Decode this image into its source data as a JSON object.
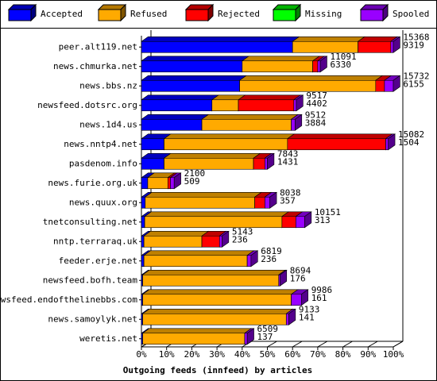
{
  "chart_data": {
    "type": "stacked-bar-3d-horizontal",
    "xlabel": "Outgoing feeds (innfeed) by articles",
    "xlim": [
      0,
      100
    ],
    "xticks": [
      {
        "value": 0,
        "label": "0%"
      },
      {
        "value": 10,
        "label": "10%"
      },
      {
        "value": 20,
        "label": "20%"
      },
      {
        "value": 30,
        "label": "30%"
      },
      {
        "value": 40,
        "label": "40%"
      },
      {
        "value": 50,
        "label": "50%"
      },
      {
        "value": 60,
        "label": "60%"
      },
      {
        "value": 70,
        "label": "70%"
      },
      {
        "value": 80,
        "label": "80%"
      },
      {
        "value": 90,
        "label": "90%"
      },
      {
        "value": 100,
        "label": "100%"
      }
    ],
    "categories": [
      "peer.alt119.net",
      "news.chmurka.net",
      "news.bbs.nz",
      "newsfeed.dotsrc.org",
      "news.1d4.us",
      "news.nntp4.net",
      "pasdenom.info",
      "news.furie.org.uk",
      "news.quux.org",
      "tnetconsulting.net",
      "nntp.terraraq.uk",
      "feeder.erje.net",
      "newsfeed.bofh.team",
      "newsfeed.endofthelinebbs.com",
      "news.samoylyk.net",
      "weretis.net"
    ],
    "series": [
      {
        "name": "Accepted",
        "color": "#0000ff",
        "values": [
          60,
          40,
          39,
          28,
          24,
          9,
          9,
          2.5,
          1.5,
          1.3,
          1,
          1,
          0.5,
          0.5,
          0.5,
          0.5
        ]
      },
      {
        "name": "Refused",
        "color": "#ffaa00",
        "values": [
          26,
          28,
          54,
          10.5,
          35.5,
          49,
          35.5,
          8,
          43.5,
          54.5,
          23,
          41,
          54,
          59,
          57,
          40.5
        ]
      },
      {
        "name": "Rejected",
        "color": "#ff0000",
        "values": [
          13,
          2,
          3.5,
          22,
          0,
          39,
          4.5,
          1,
          4,
          5.5,
          7,
          0,
          0,
          0,
          0,
          0
        ]
      },
      {
        "name": "Missing",
        "color": "#00ff00",
        "values": [
          0,
          0,
          0,
          0,
          0,
          0,
          0,
          0,
          0,
          0,
          0,
          0,
          0,
          0,
          0,
          0
        ]
      },
      {
        "name": "Spooled",
        "color": "#9900ff",
        "values": [
          1,
          1,
          3.5,
          1,
          1.5,
          1,
          1,
          1.5,
          2,
          3.5,
          1,
          1.5,
          0.5,
          4,
          1,
          1
        ]
      }
    ],
    "annotations": [
      [
        15368,
        9319
      ],
      [
        11091,
        6330
      ],
      [
        15732,
        6155
      ],
      [
        9517,
        4402
      ],
      [
        9512,
        3884
      ],
      [
        15082,
        1504
      ],
      [
        7843,
        1431
      ],
      [
        2100,
        509
      ],
      [
        8038,
        357
      ],
      [
        10151,
        313
      ],
      [
        5143,
        236
      ],
      [
        6819,
        236
      ],
      [
        8694,
        176
      ],
      [
        9986,
        161
      ],
      [
        9133,
        141
      ],
      [
        6509,
        137
      ]
    ]
  }
}
